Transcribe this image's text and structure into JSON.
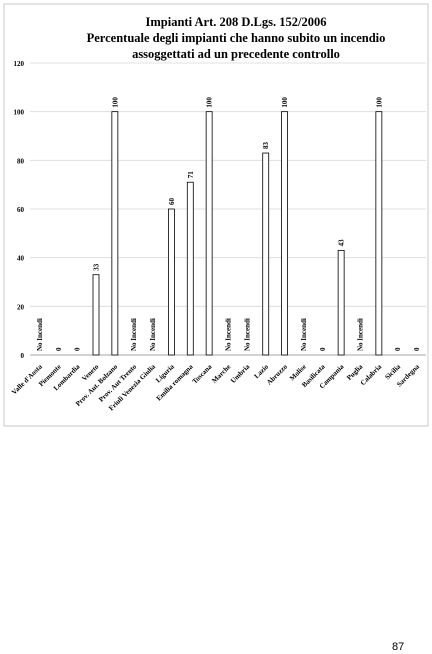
{
  "chart_data": {
    "type": "bar",
    "title": "Impianti Art. 208 D.Lgs. 152/2006",
    "subtitle": [
      "Percentuale degli impianti che hanno subito un incendio",
      "assoggettati ad un precedente controllo"
    ],
    "categories": [
      "Valle d'Aosta",
      "Piemonte",
      "Lombardia",
      "Veneto",
      "Prov. Aut. Bolzano",
      "Prov. Aut Trento",
      "Friuli Venezia Giulia",
      "Liguria",
      "Emilia romagna",
      "Toscana",
      "Marche",
      "Umbria",
      "Lazio",
      "Abruzzo",
      "Molise",
      "Basilicata",
      "Campania",
      "Puglia",
      "Calabria",
      "Sicilia",
      "Sardegna"
    ],
    "values": [
      null,
      0,
      0,
      33,
      100,
      null,
      null,
      60,
      71,
      100,
      null,
      null,
      83,
      100,
      null,
      0,
      43,
      null,
      100,
      0,
      0
    ],
    "value_labels": [
      "No Incendi",
      null,
      null,
      null,
      null,
      "No Incendi",
      "No Incendi",
      null,
      null,
      null,
      "No Incendi",
      "No Incendi",
      null,
      null,
      "No Incendi",
      null,
      null,
      "No Incendi",
      null,
      null,
      null
    ],
    "color": "#ffffff",
    "ylim": [
      0,
      120
    ],
    "yticks": [
      0,
      20,
      40,
      60,
      80,
      100,
      120
    ],
    "grid": true
  },
  "page_number": "87"
}
